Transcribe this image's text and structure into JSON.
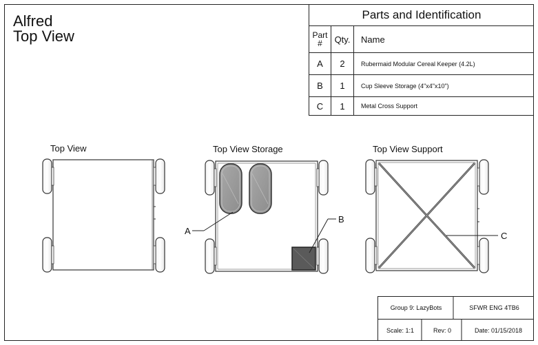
{
  "title": {
    "line1": "Alfred",
    "line2": "Top View"
  },
  "parts_table": {
    "heading": "Parts and Identification",
    "columns": {
      "part": [
        "Part",
        "#"
      ],
      "qty": "Qty.",
      "name": "Name"
    },
    "rows": [
      {
        "part": "A",
        "qty": "2",
        "name": "Rubermaid Modular Cereal Keeper (4.2L)"
      },
      {
        "part": "B",
        "qty": "1",
        "name": "Cup Sleeve Storage (4\"x4\"x10\")"
      },
      {
        "part": "C",
        "qty": "1",
        "name": "Metal Cross Support"
      }
    ]
  },
  "views": {
    "top": "Top View",
    "storage": "Top View Storage",
    "support": "Top View Support"
  },
  "callouts": {
    "a": "A",
    "b": "B",
    "c": "C"
  },
  "title_block": {
    "group": "Group 9: LazyBots",
    "course": "SFWR ENG 4TB6",
    "scale": "Scale: 1:1",
    "rev": "Rev: 0",
    "date": "Date: 01/15/2018"
  }
}
